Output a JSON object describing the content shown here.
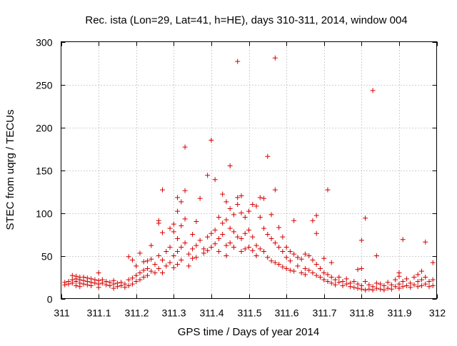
{
  "chart_data": {
    "type": "scatter",
    "title": "Rec. ista (Lon=29, Lat=41, h=HE), days 310-311, 2014, window 004",
    "xlabel": "GPS time / Days of year 2014",
    "ylabel": "STEC from uqrg / TECUs",
    "xlim": [
      311,
      312
    ],
    "ylim": [
      0,
      300
    ],
    "xticks": [
      "311",
      "311.1",
      "311.2",
      "311.3",
      "311.4",
      "311.5",
      "311.6",
      "311.7",
      "311.8",
      "311.9",
      "312"
    ],
    "yticks": [
      "0",
      "50",
      "100",
      "150",
      "200",
      "250",
      "300"
    ],
    "grid": true,
    "marker": "+",
    "color": "#d60000",
    "series": [
      {
        "points": [
          [
            311.01,
            19
          ],
          [
            311.01,
            16
          ],
          [
            311.02,
            20
          ],
          [
            311.02,
            17
          ],
          [
            311.03,
            27
          ],
          [
            311.03,
            22
          ],
          [
            311.03,
            18
          ],
          [
            311.04,
            26
          ],
          [
            311.04,
            23
          ],
          [
            311.04,
            20
          ],
          [
            311.04,
            15
          ],
          [
            311.05,
            25
          ],
          [
            311.05,
            22
          ],
          [
            311.05,
            18
          ],
          [
            311.05,
            14
          ],
          [
            311.06,
            25
          ],
          [
            311.06,
            21
          ],
          [
            311.06,
            17
          ],
          [
            311.07,
            24
          ],
          [
            311.07,
            20
          ],
          [
            311.07,
            16
          ],
          [
            311.08,
            23
          ],
          [
            311.08,
            19
          ],
          [
            311.08,
            15
          ],
          [
            311.09,
            22
          ],
          [
            311.09,
            18
          ],
          [
            311.1,
            30
          ],
          [
            311.1,
            21
          ],
          [
            311.1,
            17
          ],
          [
            311.1,
            13
          ],
          [
            311.11,
            22
          ],
          [
            311.11,
            18
          ],
          [
            311.12,
            20
          ],
          [
            311.12,
            16
          ],
          [
            311.13,
            19
          ],
          [
            311.13,
            15
          ],
          [
            311.14,
            21
          ],
          [
            311.14,
            17
          ],
          [
            311.14,
            12
          ],
          [
            311.15,
            18
          ],
          [
            311.15,
            14
          ],
          [
            311.16,
            19
          ],
          [
            311.16,
            15
          ],
          [
            311.17,
            17
          ],
          [
            311.17,
            13
          ],
          [
            311.18,
            22
          ],
          [
            311.18,
            15
          ],
          [
            311.18,
            49
          ],
          [
            311.19,
            24
          ],
          [
            311.19,
            17
          ],
          [
            311.19,
            45
          ],
          [
            311.2,
            27
          ],
          [
            311.2,
            20
          ],
          [
            311.2,
            38
          ],
          [
            311.21,
            53
          ],
          [
            311.21,
            30
          ],
          [
            311.21,
            22
          ],
          [
            311.22,
            43
          ],
          [
            311.22,
            33
          ],
          [
            311.22,
            25
          ],
          [
            311.23,
            44
          ],
          [
            311.23,
            35
          ],
          [
            311.23,
            27
          ],
          [
            311.24,
            46
          ],
          [
            311.24,
            32
          ],
          [
            311.24,
            62
          ],
          [
            311.25,
            40
          ],
          [
            311.25,
            30
          ],
          [
            311.26,
            91
          ],
          [
            311.26,
            88
          ],
          [
            311.26,
            50
          ],
          [
            311.26,
            35
          ],
          [
            311.27,
            127
          ],
          [
            311.27,
            77
          ],
          [
            311.27,
            45
          ],
          [
            311.27,
            30
          ],
          [
            311.28,
            55
          ],
          [
            311.28,
            38
          ],
          [
            311.29,
            82
          ],
          [
            311.29,
            60
          ],
          [
            311.29,
            42
          ],
          [
            311.3,
            87
          ],
          [
            311.3,
            78
          ],
          [
            311.3,
            50
          ],
          [
            311.3,
            36
          ],
          [
            311.31,
            118
          ],
          [
            311.31,
            102
          ],
          [
            311.31,
            70
          ],
          [
            311.31,
            55
          ],
          [
            311.31,
            40
          ],
          [
            311.32,
            113
          ],
          [
            311.32,
            85
          ],
          [
            311.32,
            60
          ],
          [
            311.32,
            45
          ],
          [
            311.33,
            177
          ],
          [
            311.33,
            126
          ],
          [
            311.33,
            93
          ],
          [
            311.33,
            65
          ],
          [
            311.34,
            52
          ],
          [
            311.34,
            38
          ],
          [
            311.35,
            75
          ],
          [
            311.35,
            58
          ],
          [
            311.35,
            47
          ],
          [
            311.36,
            90
          ],
          [
            311.36,
            62
          ],
          [
            311.36,
            48
          ],
          [
            311.37,
            117
          ],
          [
            311.37,
            68
          ],
          [
            311.38,
            58
          ],
          [
            311.38,
            53
          ],
          [
            311.39,
            144
          ],
          [
            311.39,
            72
          ],
          [
            311.39,
            56
          ],
          [
            311.4,
            185
          ],
          [
            311.4,
            76
          ],
          [
            311.4,
            60
          ],
          [
            311.41,
            139
          ],
          [
            311.41,
            80
          ],
          [
            311.41,
            64
          ],
          [
            311.42,
            95
          ],
          [
            311.42,
            70
          ],
          [
            311.42,
            55
          ],
          [
            311.43,
            122
          ],
          [
            311.43,
            88
          ],
          [
            311.43,
            75
          ],
          [
            311.44,
            113
          ],
          [
            311.44,
            92
          ],
          [
            311.44,
            62
          ],
          [
            311.44,
            50
          ],
          [
            311.45,
            155
          ],
          [
            311.45,
            105
          ],
          [
            311.45,
            82
          ],
          [
            311.45,
            65
          ],
          [
            311.46,
            98
          ],
          [
            311.46,
            78
          ],
          [
            311.46,
            60
          ],
          [
            311.47,
            277
          ],
          [
            311.47,
            118
          ],
          [
            311.47,
            110
          ],
          [
            311.47,
            72
          ],
          [
            311.48,
            120
          ],
          [
            311.48,
            100
          ],
          [
            311.48,
            70
          ],
          [
            311.48,
            55
          ],
          [
            311.49,
            95
          ],
          [
            311.49,
            76
          ],
          [
            311.49,
            58
          ],
          [
            311.5,
            102
          ],
          [
            311.5,
            80
          ],
          [
            311.5,
            60
          ],
          [
            311.51,
            110
          ],
          [
            311.51,
            72
          ],
          [
            311.51,
            56
          ],
          [
            311.52,
            108
          ],
          [
            311.52,
            62
          ],
          [
            311.52,
            50
          ],
          [
            311.53,
            118
          ],
          [
            311.53,
            95
          ],
          [
            311.53,
            58
          ],
          [
            311.54,
            117
          ],
          [
            311.54,
            82
          ],
          [
            311.54,
            55
          ],
          [
            311.55,
            166
          ],
          [
            311.55,
            75
          ],
          [
            311.55,
            48
          ],
          [
            311.56,
            98
          ],
          [
            311.56,
            70
          ],
          [
            311.56,
            44
          ],
          [
            311.57,
            281
          ],
          [
            311.57,
            127
          ],
          [
            311.57,
            65
          ],
          [
            311.57,
            42
          ],
          [
            311.58,
            83
          ],
          [
            311.58,
            60
          ],
          [
            311.58,
            40
          ],
          [
            311.59,
            72
          ],
          [
            311.59,
            55
          ],
          [
            311.59,
            37
          ],
          [
            311.6,
            60
          ],
          [
            311.6,
            48
          ],
          [
            311.6,
            35
          ],
          [
            311.61,
            55
          ],
          [
            311.61,
            44
          ],
          [
            311.61,
            33
          ],
          [
            311.62,
            91
          ],
          [
            311.62,
            52
          ],
          [
            311.62,
            32
          ],
          [
            311.63,
            48
          ],
          [
            311.63,
            38
          ],
          [
            311.64,
            46
          ],
          [
            311.64,
            30
          ],
          [
            311.65,
            52
          ],
          [
            311.65,
            35
          ],
          [
            311.65,
            28
          ],
          [
            311.66,
            50
          ],
          [
            311.66,
            33
          ],
          [
            311.67,
            91
          ],
          [
            311.67,
            45
          ],
          [
            311.67,
            30
          ],
          [
            311.68,
            97
          ],
          [
            311.68,
            76
          ],
          [
            311.68,
            40
          ],
          [
            311.68,
            27
          ],
          [
            311.69,
            35
          ],
          [
            311.69,
            25
          ],
          [
            311.7,
            47
          ],
          [
            311.7,
            30
          ],
          [
            311.7,
            22
          ],
          [
            311.71,
            127
          ],
          [
            311.71,
            28
          ],
          [
            311.71,
            20
          ],
          [
            311.72,
            42
          ],
          [
            311.72,
            25
          ],
          [
            311.72,
            18
          ],
          [
            311.73,
            22
          ],
          [
            311.73,
            16
          ],
          [
            311.74,
            25
          ],
          [
            311.74,
            19
          ],
          [
            311.75,
            20
          ],
          [
            311.75,
            15
          ],
          [
            311.76,
            23
          ],
          [
            311.76,
            17
          ],
          [
            311.77,
            18
          ],
          [
            311.77,
            14
          ],
          [
            311.78,
            20
          ],
          [
            311.78,
            13
          ],
          [
            311.79,
            34
          ],
          [
            311.79,
            17
          ],
          [
            311.79,
            12
          ],
          [
            311.8,
            68
          ],
          [
            311.8,
            35
          ],
          [
            311.8,
            15
          ],
          [
            311.8,
            11
          ],
          [
            311.81,
            94
          ],
          [
            311.81,
            20
          ],
          [
            311.81,
            10
          ],
          [
            311.82,
            16
          ],
          [
            311.82,
            11
          ],
          [
            311.83,
            243
          ],
          [
            311.83,
            14
          ],
          [
            311.83,
            10
          ],
          [
            311.84,
            50
          ],
          [
            311.84,
            18
          ],
          [
            311.84,
            12
          ],
          [
            311.85,
            17
          ],
          [
            311.85,
            11
          ],
          [
            311.86,
            15
          ],
          [
            311.86,
            10
          ],
          [
            311.87,
            19
          ],
          [
            311.87,
            12
          ],
          [
            311.88,
            16
          ],
          [
            311.88,
            11
          ],
          [
            311.89,
            22
          ],
          [
            311.89,
            14
          ],
          [
            311.9,
            30
          ],
          [
            311.9,
            26
          ],
          [
            311.9,
            17
          ],
          [
            311.9,
            12
          ],
          [
            311.91,
            69
          ],
          [
            311.91,
            20
          ],
          [
            311.91,
            14
          ],
          [
            311.92,
            23
          ],
          [
            311.92,
            15
          ],
          [
            311.93,
            18
          ],
          [
            311.93,
            13
          ],
          [
            311.94,
            25
          ],
          [
            311.94,
            16
          ],
          [
            311.95,
            28
          ],
          [
            311.95,
            20
          ],
          [
            311.95,
            14
          ],
          [
            311.96,
            32
          ],
          [
            311.96,
            22
          ],
          [
            311.96,
            15
          ],
          [
            311.97,
            66
          ],
          [
            311.97,
            25
          ],
          [
            311.97,
            17
          ],
          [
            311.98,
            20
          ],
          [
            311.98,
            14
          ],
          [
            311.99,
            42
          ],
          [
            311.99,
            22
          ],
          [
            311.99,
            15
          ]
        ]
      }
    ]
  }
}
